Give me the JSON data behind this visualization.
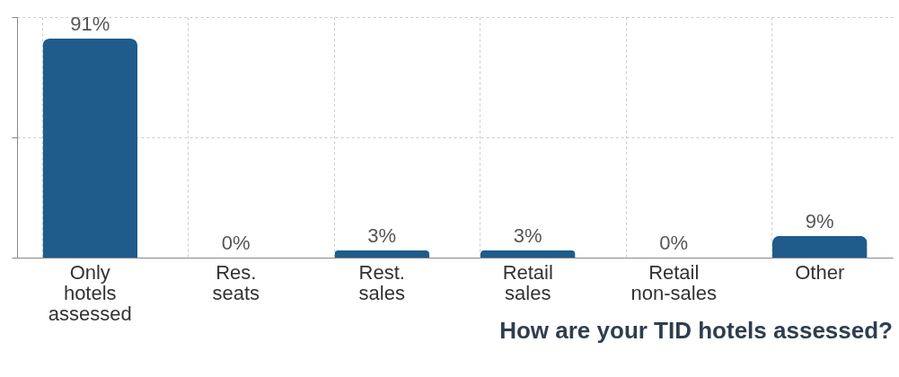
{
  "chart_data": {
    "type": "bar",
    "title": "How are your TID hotels assessed?",
    "categories": [
      "Only hotels assessed",
      "Res. seats",
      "Rest. sales",
      "Retail sales",
      "Retail non-sales",
      "Other"
    ],
    "values": [
      91,
      0,
      3,
      3,
      0,
      9
    ],
    "value_labels": [
      "91%",
      "0%",
      "3%",
      "3%",
      "0%",
      "9%"
    ],
    "color": "#1f5c8b",
    "ylim": [
      0,
      100
    ],
    "yticks": [
      {
        "value": 0,
        "label": null
      },
      {
        "value": 50,
        "label": null
      },
      {
        "value": 100,
        "label": null
      }
    ],
    "tick_labels": "x",
    "grid": true
  }
}
